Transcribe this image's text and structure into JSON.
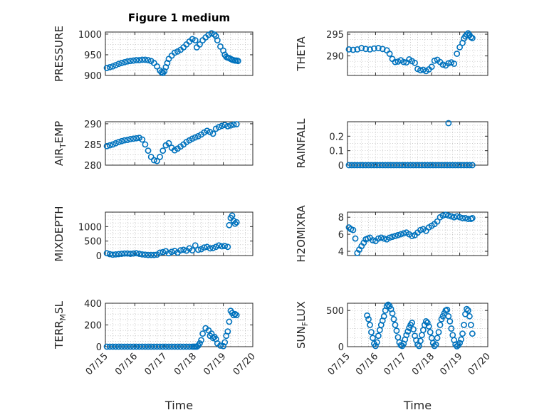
{
  "figure": {
    "title": "Figure 1 medium",
    "xlabel": "Time",
    "marker_color": "#0072BD",
    "time_ticks": [
      "07/15",
      "07/16",
      "07/17",
      "07/18",
      "07/19",
      "07/20"
    ]
  },
  "chart_data": [
    {
      "id": "pressure",
      "type": "scatter",
      "ylabel": "PRESSURE",
      "ylim": [
        900,
        1005
      ],
      "yticks": [
        900,
        950,
        1000
      ],
      "ytick_labels": [
        "900",
        "950",
        "1000"
      ],
      "xlim": [
        0,
        5
      ],
      "x": [
        0.05,
        0.15,
        0.25,
        0.35,
        0.45,
        0.55,
        0.65,
        0.75,
        0.85,
        0.95,
        1.05,
        1.15,
        1.25,
        1.35,
        1.45,
        1.55,
        1.65,
        1.75,
        1.85,
        1.9,
        1.95,
        2.0,
        2.05,
        2.1,
        2.15,
        2.25,
        2.35,
        2.45,
        2.55,
        2.65,
        2.75,
        2.85,
        2.95,
        3.05,
        3.1,
        3.2,
        3.3,
        3.4,
        3.5,
        3.6,
        3.7,
        3.75,
        3.8,
        3.9,
        4.0,
        4.05,
        4.1,
        4.15,
        4.2,
        4.25,
        4.3,
        4.35,
        4.4,
        4.45,
        4.5
      ],
      "y": [
        918,
        920,
        922,
        925,
        928,
        930,
        932,
        934,
        935,
        936,
        937,
        937,
        938,
        938,
        937,
        935,
        930,
        922,
        912,
        908,
        906,
        910,
        920,
        930,
        940,
        948,
        955,
        958,
        962,
        968,
        975,
        982,
        988,
        985,
        968,
        975,
        985,
        992,
        998,
        1002,
        999,
        995,
        985,
        970,
        960,
        950,
        945,
        943,
        942,
        940,
        938,
        937,
        936,
        936,
        935
      ]
    },
    {
      "id": "theta",
      "type": "scatter",
      "ylabel": "THETA",
      "ylim": [
        285.5,
        295.5
      ],
      "yticks": [
        290,
        295
      ],
      "ytick_labels": [
        "290",
        "295"
      ],
      "xlim": [
        0,
        5
      ],
      "x": [
        0.05,
        0.2,
        0.35,
        0.5,
        0.65,
        0.8,
        0.95,
        1.1,
        1.25,
        1.4,
        1.5,
        1.6,
        1.7,
        1.8,
        1.9,
        2.0,
        2.1,
        2.2,
        2.3,
        2.4,
        2.5,
        2.6,
        2.7,
        2.8,
        2.9,
        3.0,
        3.1,
        3.2,
        3.3,
        3.4,
        3.5,
        3.6,
        3.7,
        3.8,
        3.9,
        4.0,
        4.1,
        4.15,
        4.2,
        4.25,
        4.3,
        4.35,
        4.4,
        4.45
      ],
      "y": [
        291.5,
        291.4,
        291.5,
        291.8,
        291.6,
        291.5,
        291.7,
        291.8,
        291.6,
        291.3,
        290.5,
        289.3,
        288.6,
        288.7,
        289.0,
        288.6,
        288.5,
        289.2,
        288.8,
        288.4,
        287.0,
        286.7,
        286.8,
        286.5,
        286.9,
        287.5,
        288.9,
        289.1,
        288.6,
        288.0,
        287.8,
        288.3,
        288.5,
        288.2,
        290.5,
        292.0,
        293.0,
        294.0,
        294.5,
        294.9,
        295.2,
        294.8,
        294.3,
        294.1
      ]
    },
    {
      "id": "air_temp",
      "type": "scatter",
      "ylabel": "AIR_TEMP",
      "ylim": [
        280,
        290.5
      ],
      "yticks": [
        280,
        285,
        290
      ],
      "ytick_labels": [
        "280",
        "285",
        "290"
      ],
      "xlim": [
        0,
        5
      ],
      "x": [
        0.05,
        0.15,
        0.25,
        0.35,
        0.45,
        0.55,
        0.65,
        0.75,
        0.85,
        0.95,
        1.05,
        1.15,
        1.25,
        1.35,
        1.45,
        1.55,
        1.65,
        1.75,
        1.85,
        1.95,
        2.05,
        2.15,
        2.25,
        2.35,
        2.45,
        2.55,
        2.65,
        2.75,
        2.85,
        2.95,
        3.05,
        3.15,
        3.25,
        3.35,
        3.45,
        3.55,
        3.65,
        3.75,
        3.85,
        3.95,
        4.05,
        4.15,
        4.25,
        4.35,
        4.45
      ],
      "y": [
        284.6,
        284.8,
        285.0,
        285.3,
        285.6,
        285.8,
        286.0,
        286.1,
        286.3,
        286.4,
        286.5,
        286.6,
        286.2,
        285.0,
        283.5,
        282.0,
        281.2,
        281.0,
        282.0,
        283.5,
        284.8,
        285.3,
        284.2,
        283.6,
        284.0,
        284.5,
        285.0,
        285.6,
        286.0,
        286.4,
        286.7,
        287.0,
        287.4,
        287.9,
        288.3,
        288.0,
        287.6,
        288.8,
        289.2,
        289.5,
        289.7,
        289.4,
        289.6,
        289.8,
        289.9
      ]
    },
    {
      "id": "rainfall",
      "type": "scatter",
      "ylabel": "RAINFALL",
      "ylim": [
        0,
        0.3
      ],
      "yticks": [
        0,
        0.1,
        0.2
      ],
      "ytick_labels": [
        "0",
        "0.1",
        "0.2"
      ],
      "xlim": [
        0,
        5
      ],
      "x": [
        0.05,
        0.15,
        0.25,
        0.35,
        0.45,
        0.55,
        0.65,
        0.75,
        0.85,
        0.95,
        1.05,
        1.15,
        1.25,
        1.35,
        1.45,
        1.55,
        1.65,
        1.75,
        1.85,
        1.95,
        2.05,
        2.15,
        2.25,
        2.35,
        2.45,
        2.55,
        2.65,
        2.75,
        2.85,
        2.95,
        3.05,
        3.15,
        3.25,
        3.35,
        3.45,
        3.55,
        3.65,
        3.75,
        3.85,
        3.95,
        4.05,
        4.15,
        4.25,
        4.35,
        4.45,
        3.6
      ],
      "y": [
        0,
        0,
        0,
        0,
        0,
        0,
        0,
        0,
        0,
        0,
        0,
        0,
        0,
        0,
        0,
        0,
        0,
        0,
        0,
        0,
        0,
        0,
        0,
        0,
        0,
        0,
        0,
        0,
        0,
        0,
        0,
        0,
        0,
        0,
        0,
        0,
        0,
        0,
        0,
        0,
        0,
        0,
        0,
        0,
        0,
        0.29
      ]
    },
    {
      "id": "mixdepth",
      "type": "scatter",
      "ylabel": "MIXDEPTH",
      "ylim": [
        0,
        1500
      ],
      "yticks": [
        0,
        500,
        1000
      ],
      "ytick_labels": [
        "0",
        "500",
        "1000"
      ],
      "xlim": [
        0,
        5
      ],
      "x": [
        0.05,
        0.15,
        0.25,
        0.35,
        0.45,
        0.55,
        0.65,
        0.75,
        0.85,
        0.95,
        1.05,
        1.15,
        1.25,
        1.35,
        1.45,
        1.55,
        1.65,
        1.75,
        1.85,
        1.95,
        2.05,
        2.15,
        2.25,
        2.35,
        2.45,
        2.55,
        2.65,
        2.75,
        2.85,
        2.95,
        3.05,
        3.15,
        3.25,
        3.35,
        3.45,
        3.55,
        3.65,
        3.75,
        3.85,
        3.95,
        4.05,
        4.15,
        4.2,
        4.25,
        4.3,
        4.35,
        4.4,
        4.45
      ],
      "y": [
        80,
        50,
        30,
        40,
        50,
        60,
        70,
        70,
        60,
        70,
        80,
        60,
        40,
        30,
        20,
        20,
        20,
        30,
        100,
        120,
        150,
        80,
        130,
        160,
        100,
        180,
        200,
        170,
        250,
        180,
        350,
        200,
        220,
        280,
        300,
        250,
        260,
        300,
        350,
        320,
        330,
        300,
        1050,
        1300,
        1380,
        1200,
        1100,
        1150
      ]
    },
    {
      "id": "h2omixra",
      "type": "scatter",
      "ylabel": "H2OMIXRA",
      "ylim": [
        3.5,
        8.6
      ],
      "yticks": [
        4,
        6,
        8
      ],
      "ytick_labels": [
        "4",
        "6",
        "8"
      ],
      "xlim": [
        0,
        5
      ],
      "x": [
        0.05,
        0.12,
        0.2,
        0.28,
        0.35,
        0.42,
        0.5,
        0.58,
        0.65,
        0.72,
        0.8,
        0.9,
        1.0,
        1.1,
        1.2,
        1.3,
        1.4,
        1.5,
        1.6,
        1.7,
        1.8,
        1.9,
        2.0,
        2.1,
        2.2,
        2.3,
        2.4,
        2.5,
        2.6,
        2.7,
        2.8,
        2.9,
        3.0,
        3.1,
        3.2,
        3.3,
        3.4,
        3.5,
        3.6,
        3.7,
        3.8,
        3.9,
        4.0,
        4.1,
        4.2,
        4.3,
        4.4,
        4.45
      ],
      "y": [
        6.8,
        6.6,
        6.5,
        5.5,
        3.8,
        4.2,
        4.6,
        5.0,
        5.4,
        5.5,
        5.6,
        5.3,
        5.2,
        5.5,
        5.6,
        5.5,
        5.4,
        5.6,
        5.7,
        5.8,
        5.9,
        6.0,
        6.1,
        6.2,
        6.0,
        5.8,
        5.9,
        6.2,
        6.5,
        6.6,
        6.4,
        6.8,
        7.0,
        7.2,
        7.5,
        8.0,
        8.2,
        8.3,
        8.2,
        8.1,
        8.0,
        8.1,
        8.0,
        7.9,
        7.9,
        7.8,
        7.8,
        7.9
      ]
    },
    {
      "id": "terr_msl",
      "type": "scatter",
      "ylabel": "TERR_MSL",
      "ylim": [
        0,
        400
      ],
      "yticks": [
        0,
        200,
        400
      ],
      "ytick_labels": [
        "0",
        "200",
        "400"
      ],
      "xlim": [
        0,
        5
      ],
      "x": [
        0.05,
        0.15,
        0.25,
        0.35,
        0.45,
        0.55,
        0.65,
        0.75,
        0.85,
        0.95,
        1.05,
        1.15,
        1.25,
        1.35,
        1.45,
        1.55,
        1.65,
        1.75,
        1.85,
        1.95,
        2.05,
        2.15,
        2.25,
        2.35,
        2.45,
        2.55,
        2.65,
        2.75,
        2.85,
        2.95,
        3.0,
        3.05,
        3.1,
        3.15,
        3.2,
        3.25,
        3.3,
        3.4,
        3.5,
        3.55,
        3.6,
        3.65,
        3.7,
        3.75,
        3.8,
        3.9,
        4.0,
        4.05,
        4.1,
        4.15,
        4.2,
        4.25,
        4.3,
        4.35,
        4.4,
        4.45
      ],
      "y": [
        0,
        0,
        0,
        0,
        0,
        0,
        0,
        0,
        0,
        0,
        0,
        0,
        0,
        0,
        0,
        0,
        0,
        0,
        0,
        0,
        0,
        0,
        0,
        0,
        0,
        0,
        0,
        0,
        0,
        0,
        0,
        0,
        0,
        10,
        30,
        60,
        120,
        170,
        150,
        100,
        120,
        80,
        90,
        70,
        30,
        10,
        5,
        40,
        100,
        140,
        230,
        330,
        310,
        290,
        300,
        290
      ]
    },
    {
      "id": "sun_flux",
      "type": "scatter",
      "ylabel": "SUN_FLUX",
      "ylim": [
        0,
        600
      ],
      "yticks": [
        0,
        500
      ],
      "ytick_labels": [
        "0",
        "500"
      ],
      "xlim": [
        0,
        5
      ],
      "x": [
        0.7,
        0.75,
        0.8,
        0.85,
        0.9,
        0.95,
        1.0,
        1.05,
        1.1,
        1.15,
        1.2,
        1.25,
        1.3,
        1.35,
        1.4,
        1.45,
        1.5,
        1.55,
        1.6,
        1.65,
        1.7,
        1.75,
        1.8,
        1.85,
        1.9,
        1.95,
        2.0,
        2.05,
        2.1,
        2.15,
        2.2,
        2.25,
        2.3,
        2.35,
        2.4,
        2.45,
        2.5,
        2.55,
        2.6,
        2.65,
        2.7,
        2.75,
        2.8,
        2.85,
        2.9,
        2.95,
        3.0,
        3.05,
        3.1,
        3.15,
        3.2,
        3.25,
        3.3,
        3.35,
        3.4,
        3.45,
        3.5,
        3.55,
        3.6,
        3.65,
        3.7,
        3.75,
        3.8,
        3.85,
        3.9,
        3.95,
        4.0,
        4.05,
        4.1,
        4.15,
        4.2,
        4.25,
        4.3,
        4.35,
        4.4,
        4.45
      ],
      "y": [
        430,
        380,
        300,
        200,
        120,
        40,
        10,
        60,
        150,
        230,
        300,
        360,
        420,
        500,
        560,
        580,
        560,
        520,
        460,
        380,
        300,
        220,
        130,
        60,
        20,
        10,
        40,
        100,
        160,
        210,
        260,
        300,
        330,
        240,
        150,
        90,
        30,
        10,
        80,
        160,
        230,
        300,
        350,
        330,
        280,
        200,
        120,
        50,
        10,
        30,
        120,
        200,
        300,
        380,
        420,
        460,
        500,
        510,
        420,
        350,
        250,
        160,
        90,
        30,
        5,
        20,
        50,
        100,
        180,
        300,
        450,
        520,
        500,
        420,
        300,
        180
      ]
    }
  ]
}
